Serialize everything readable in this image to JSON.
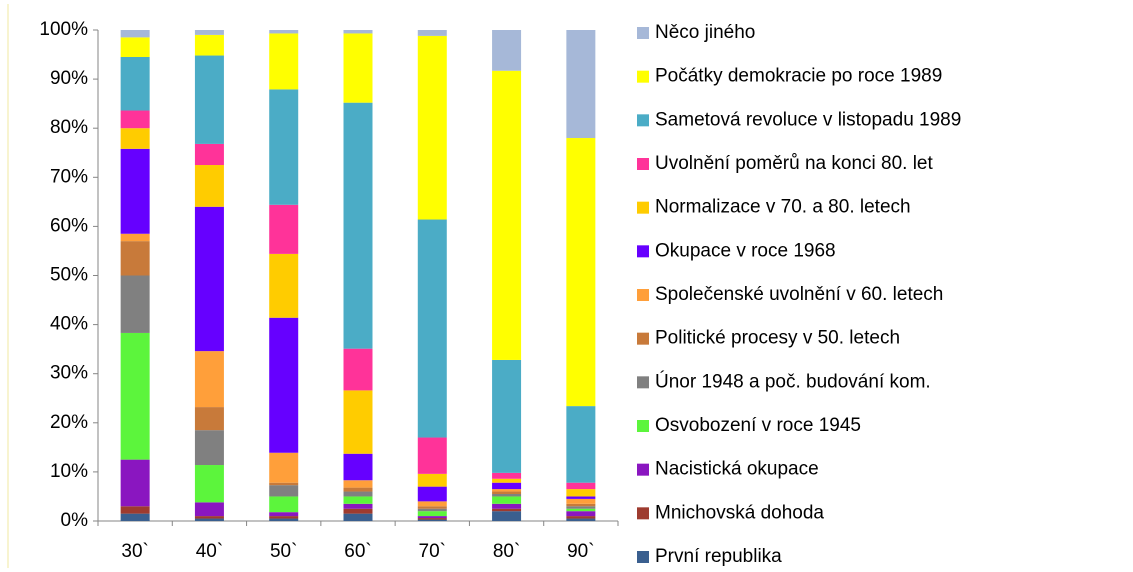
{
  "chart_data": {
    "type": "stacked_bar",
    "categories": [
      "30`",
      "40`",
      "50`",
      "60`",
      "70`",
      "80`",
      "90`"
    ],
    "ylim": [
      0,
      100
    ],
    "yticks": [
      {
        "value": 0,
        "label": "0%"
      },
      {
        "value": 10,
        "label": "10%"
      },
      {
        "value": 20,
        "label": "20%"
      },
      {
        "value": 30,
        "label": "30%"
      },
      {
        "value": 40,
        "label": "40%"
      },
      {
        "value": 50,
        "label": "50%"
      },
      {
        "value": 60,
        "label": "60%"
      },
      {
        "value": 70,
        "label": "70%"
      },
      {
        "value": 80,
        "label": "80%"
      },
      {
        "value": 90,
        "label": "90%"
      },
      {
        "value": 100,
        "label": "100%"
      }
    ],
    "grid": false,
    "legend": "right",
    "series": [
      {
        "name": "První republika",
        "color": "#3a5f8f",
        "values": [
          1.5,
          0.5,
          0.5,
          1.5,
          0.3,
          2,
          0.5
        ]
      },
      {
        "name": "Mnichovská dohoda",
        "color": "#9e3b2f",
        "values": [
          1.5,
          0.5,
          0.5,
          1,
          0.3,
          0.5,
          0.5
        ]
      },
      {
        "name": "Nacistická okupace",
        "color": "#8a16c0",
        "values": [
          9.5,
          2.8,
          0.8,
          1,
          0.4,
          1,
          1
        ]
      },
      {
        "name": "Osvobození v roce 1945",
        "color": "#5cf53c",
        "values": [
          25.8,
          7.6,
          3.2,
          1.5,
          1,
          1.5,
          0.5
        ]
      },
      {
        "name": "Únor 1948 a poč. budování kom.",
        "color": "#808080",
        "values": [
          11.7,
          7.1,
          2.3,
          1,
          0.5,
          0.5,
          0.5
        ]
      },
      {
        "name": "Politické procesy v 50. letech",
        "color": "#c87a3a",
        "values": [
          7,
          4.7,
          0.5,
          0.8,
          0.5,
          0.5,
          0.5
        ]
      },
      {
        "name": "Společenské uvolnění v 60. letech",
        "color": "#ff9f3a",
        "values": [
          1.5,
          11.4,
          6.1,
          1.5,
          1,
          0.5,
          1
        ]
      },
      {
        "name": "Okupace v roce 1968",
        "color": "#6600ff",
        "values": [
          17.3,
          29.4,
          27.5,
          5.4,
          3,
          1.3,
          0.5
        ]
      },
      {
        "name": "Normalizace v 70. a 80. letech",
        "color": "#ffcc00",
        "values": [
          4.2,
          8.5,
          13,
          12.9,
          2.6,
          0.8,
          1.5
        ]
      },
      {
        "name": "Uvolnění poměrů na konci 80. let",
        "color": "#ff3399",
        "values": [
          3.6,
          4.3,
          10,
          8.5,
          7.4,
          1.2,
          1.3
        ]
      },
      {
        "name": "Sametová revoluce v listopadu 1989",
        "color": "#4bacc6",
        "values": [
          10.9,
          18,
          23.5,
          50.1,
          44.4,
          23,
          15.6
        ]
      },
      {
        "name": "Počátky demokracie po roce 1989",
        "color": "#ffff00",
        "values": [
          4,
          4.2,
          11.4,
          14.1,
          37.4,
          58.9,
          54.6
        ]
      },
      {
        "name": "Něco jiného",
        "color": "#a6b8d8",
        "values": [
          1.5,
          1,
          0.7,
          0.7,
          1.2,
          8.3,
          22
        ]
      }
    ]
  }
}
